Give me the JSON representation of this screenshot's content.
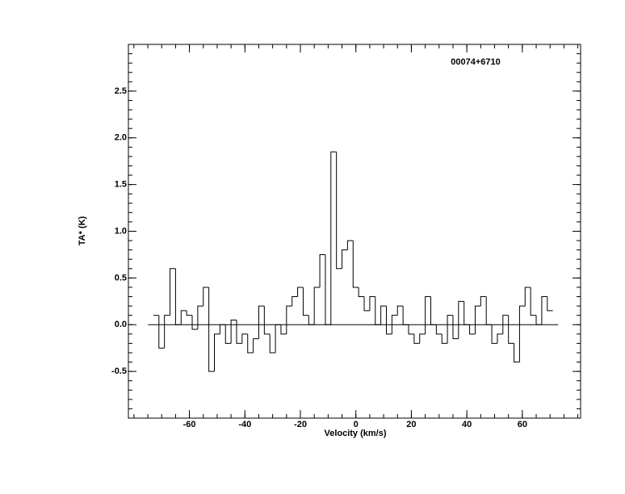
{
  "chart_data": {
    "type": "step",
    "title": "00074+6710",
    "xlabel": "Velocity (km/s)",
    "ylabel": "TA* (K)",
    "color": "#000000",
    "x": [
      -72,
      -70,
      -68,
      -66,
      -64,
      -62,
      -60,
      -58,
      -56,
      -54,
      -52,
      -50,
      -48,
      -46,
      -44,
      -42,
      -40,
      -38,
      -36,
      -34,
      -32,
      -30,
      -28,
      -26,
      -24,
      -22,
      -20,
      -18,
      -16,
      -14,
      -12,
      -10,
      -8,
      -6,
      -4,
      -2,
      0,
      2,
      4,
      6,
      8,
      10,
      12,
      14,
      16,
      18,
      20,
      22,
      24,
      26,
      28,
      30,
      32,
      34,
      36,
      38,
      40,
      42,
      44,
      46,
      48,
      50,
      52,
      54,
      56,
      58,
      60,
      62,
      64,
      66,
      68,
      70
    ],
    "values": [
      0.1,
      -0.25,
      0.1,
      0.6,
      0.0,
      0.15,
      0.1,
      -0.05,
      0.2,
      0.4,
      -0.5,
      -0.1,
      0.0,
      -0.2,
      0.05,
      -0.2,
      -0.1,
      -0.3,
      -0.15,
      0.2,
      -0.1,
      -0.3,
      0.0,
      -0.1,
      0.2,
      0.3,
      0.4,
      0.1,
      0.0,
      0.4,
      0.75,
      0.0,
      1.85,
      0.6,
      0.8,
      0.9,
      0.4,
      0.3,
      0.15,
      0.3,
      0.0,
      0.2,
      -0.1,
      0.1,
      0.2,
      0.0,
      -0.1,
      -0.2,
      -0.1,
      0.3,
      0.0,
      -0.1,
      -0.2,
      0.1,
      -0.15,
      0.25,
      0.0,
      -0.1,
      0.2,
      0.3,
      0.0,
      -0.2,
      -0.1,
      0.1,
      -0.2,
      -0.4,
      0.2,
      0.4,
      0.1,
      0.0,
      0.3,
      0.15
    ],
    "xlim": [
      -82,
      81
    ],
    "ylim": [
      -1,
      3
    ],
    "xticks": [
      -60,
      -40,
      -20,
      0,
      20,
      40,
      60
    ],
    "yticks": [
      -0.5,
      {
        "value": 0,
        "label": "0.0"
      },
      0.5,
      {
        "value": 1,
        "label": "1.0"
      },
      1.5,
      {
        "value": 2,
        "label": "2.0"
      },
      2.5
    ]
  }
}
